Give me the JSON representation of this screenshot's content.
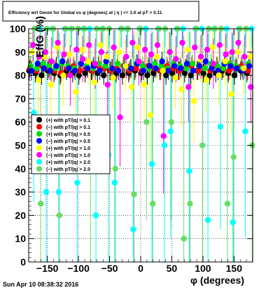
{
  "title": "Efficiency wrt Geom for Global vs φ (degrees) at | η | <= 1.0 at pT > 0.11",
  "footer_timestamp": "Sun Apr 10 08:38:32 2016",
  "chart_data": {
    "type": "scatter",
    "title": "Efficiency wrt Geom for Global vs φ (degrees) at | η | <= 1.0 at pT > 0.11",
    "xlabel": "φ (degrees)",
    "ylabel": "EffG (%)",
    "xlim": [
      -180,
      180
    ],
    "ylim": [
      0,
      100
    ],
    "x_ticks": [
      -150,
      -100,
      -50,
      0,
      50,
      100,
      150
    ],
    "x_tick_labels": [
      "−150",
      "−100",
      "−50",
      "0",
      "50",
      "100",
      "150"
    ],
    "y_ticks": [
      0,
      10,
      20,
      30,
      40,
      50,
      60,
      70,
      80,
      90,
      100
    ],
    "grid": true,
    "legend_placement": "middle-left",
    "series": [
      {
        "name": "(+) with pT/|q| > 0.1",
        "color": "#000000",
        "x": [
          -175,
          -165,
          -155,
          -145,
          -135,
          -125,
          -115,
          -105,
          -95,
          -85,
          -75,
          -65,
          -55,
          -45,
          -35,
          -25,
          -15,
          -5,
          5,
          15,
          25,
          35,
          45,
          55,
          65,
          75,
          85,
          95,
          105,
          115,
          125,
          135,
          145,
          155,
          165,
          175
        ],
        "y": [
          82,
          81,
          80,
          82,
          81,
          80,
          82,
          81,
          80,
          81,
          82,
          81,
          80,
          82,
          81,
          80,
          81,
          82,
          81,
          80,
          81,
          82,
          80,
          81,
          82,
          81,
          80,
          82,
          81,
          80,
          81,
          82,
          81,
          80,
          82,
          81
        ]
      },
      {
        "name": "(−) with pT/|q| > 0.1",
        "color": "#ff0000",
        "x": [
          -175,
          -165,
          -155,
          -145,
          -135,
          -125,
          -115,
          -105,
          -95,
          -85,
          -75,
          -65,
          -55,
          -45,
          -35,
          -25,
          -15,
          -5,
          5,
          15,
          25,
          35,
          45,
          55,
          65,
          75,
          85,
          95,
          105,
          115,
          125,
          135,
          145,
          155,
          165,
          175
        ],
        "y": [
          83,
          82,
          84,
          83,
          82,
          81,
          83,
          84,
          82,
          83,
          82,
          84,
          83,
          82,
          83,
          84,
          82,
          83,
          82,
          84,
          83,
          82,
          84,
          83,
          82,
          83,
          84,
          82,
          83,
          82,
          84,
          83,
          82,
          83,
          84,
          82
        ]
      },
      {
        "name": "(+) with pT/|q| > 0.5",
        "color": "#00dd00",
        "x": [
          -175,
          -165,
          -155,
          -145,
          -135,
          -125,
          -115,
          -105,
          -95,
          -85,
          -75,
          -65,
          -55,
          -45,
          -35,
          -25,
          -15,
          -5,
          5,
          15,
          25,
          35,
          45,
          55,
          65,
          75,
          85,
          95,
          105,
          115,
          125,
          135,
          145,
          155,
          165,
          175
        ],
        "y": [
          84,
          83,
          85,
          84,
          83,
          85,
          84,
          83,
          85,
          84,
          83,
          85,
          84,
          83,
          85,
          84,
          83,
          85,
          84,
          83,
          85,
          84,
          83,
          85,
          84,
          83,
          85,
          84,
          83,
          85,
          84,
          83,
          85,
          84,
          83,
          85
        ]
      },
      {
        "name": "(−) with pT/|q| > 0.5",
        "color": "#0000ff",
        "x": [
          -175,
          -165,
          -155,
          -145,
          -135,
          -125,
          -115,
          -105,
          -95,
          -85,
          -75,
          -65,
          -55,
          -45,
          -35,
          -25,
          -15,
          -5,
          5,
          15,
          25,
          35,
          45,
          55,
          65,
          75,
          85,
          95,
          105,
          115,
          125,
          135,
          145,
          155,
          165,
          175
        ],
        "y": [
          82,
          85,
          83,
          82,
          84,
          86,
          83,
          82,
          85,
          83,
          84,
          82,
          86,
          83,
          82,
          84,
          83,
          85,
          82,
          84,
          83,
          86,
          82,
          84,
          83,
          85,
          82,
          84,
          86,
          83,
          82,
          85,
          84,
          83,
          82,
          84
        ]
      },
      {
        "name": "(+) with pT/|q| > 1.0",
        "color": "#ffff00",
        "x": [
          -175,
          -165,
          -155,
          -145,
          -135,
          -125,
          -115,
          -105,
          -95,
          -85,
          -75,
          -65,
          -55,
          -45,
          -35,
          -25,
          -15,
          -5,
          5,
          15,
          25,
          35,
          45,
          55,
          65,
          75,
          85,
          95,
          105,
          115,
          125,
          135,
          145,
          155,
          165,
          175
        ],
        "y": [
          90,
          78,
          88,
          76,
          92,
          80,
          89,
          73,
          91,
          86,
          77,
          93,
          88,
          79,
          90,
          84,
          75,
          92,
          76,
          63,
          88,
          82,
          90,
          79,
          74,
          91,
          69,
          87,
          78,
          92,
          80,
          86,
          72,
          90,
          83,
          88
        ]
      },
      {
        "name": "(−) with pT/|q| > 1.0",
        "color": "#ff00ff",
        "x": [
          -175,
          -165,
          -155,
          -145,
          -135,
          -125,
          -115,
          -105,
          -95,
          -85,
          -75,
          -65,
          -55,
          -45,
          -35,
          -25,
          -15,
          -5,
          5,
          15,
          25,
          35,
          45,
          55,
          65,
          75,
          85,
          95,
          105,
          115,
          125,
          135,
          145,
          155,
          165,
          175
        ],
        "y": [
          93,
          88,
          90,
          86,
          94,
          89,
          80,
          91,
          87,
          93,
          85,
          90,
          76,
          92,
          62,
          88,
          94,
          86,
          91,
          89,
          93,
          54,
          90,
          87,
          94,
          75,
          92,
          88,
          91,
          85,
          93,
          89,
          90,
          94,
          88,
          75
        ]
      },
      {
        "name": "(+) with pT/|q| > 2.0",
        "color": "#00ffff",
        "x": [
          -175,
          -165,
          -155,
          -145,
          -135,
          -125,
          -115,
          -105,
          -95,
          -85,
          -75,
          -65,
          -55,
          -45,
          -35,
          -25,
          -15,
          -5,
          5,
          15,
          25,
          35,
          45,
          55,
          65,
          75,
          85,
          95,
          105,
          115,
          125,
          135,
          145,
          155,
          165,
          175
        ],
        "y": [
          64,
          100,
          30,
          100,
          30,
          100,
          100,
          34,
          100,
          100,
          20,
          100,
          46,
          34,
          100,
          100,
          14,
          100,
          100,
          42,
          100,
          50,
          56,
          100,
          100,
          39,
          100,
          100,
          18,
          100,
          58,
          100,
          17,
          100,
          56,
          100
        ]
      },
      {
        "name": "(−) with pT/|q| > 2.0",
        "color": "#66dd66",
        "x": [
          -175,
          -165,
          -155,
          -145,
          -135,
          -125,
          -115,
          -105,
          -95,
          -85,
          -75,
          -65,
          -55,
          -45,
          -35,
          -25,
          -15,
          -5,
          5,
          15,
          25,
          35,
          45,
          55,
          65,
          75,
          85,
          95,
          105,
          115,
          125,
          135,
          145,
          155,
          165,
          175
        ],
        "y": [
          100,
          25,
          100,
          100,
          20,
          100,
          100,
          100,
          100,
          40,
          100,
          100,
          100,
          40,
          100,
          100,
          29,
          100,
          60,
          25,
          100,
          100,
          60,
          100,
          10,
          25,
          100,
          50,
          100,
          100,
          100,
          25,
          45,
          100,
          100,
          50
        ]
      }
    ]
  }
}
